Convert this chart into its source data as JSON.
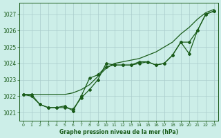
{
  "title": "Graphe pression niveau de la mer (hPa)",
  "bg_color": "#cceee8",
  "grid_color": "#aacccc",
  "line_color": "#1a5c1a",
  "xlim": [
    -0.5,
    23.5
  ],
  "ylim": [
    1020.5,
    1027.7
  ],
  "yticks": [
    1021,
    1022,
    1023,
    1024,
    1025,
    1026,
    1027
  ],
  "xticks": [
    0,
    1,
    2,
    3,
    4,
    5,
    6,
    7,
    8,
    9,
    10,
    11,
    12,
    13,
    14,
    15,
    16,
    17,
    18,
    19,
    20,
    21,
    22,
    23
  ],
  "series_smooth": {
    "x": [
      0,
      1,
      2,
      3,
      4,
      5,
      6,
      7,
      8,
      9,
      10,
      11,
      12,
      13,
      14,
      15,
      16,
      17,
      18,
      19,
      20,
      21,
      22,
      23
    ],
    "y": [
      1022.1,
      1022.1,
      1022.1,
      1022.1,
      1022.1,
      1022.1,
      1022.2,
      1022.4,
      1022.7,
      1023.2,
      1023.7,
      1024.0,
      1024.1,
      1024.2,
      1024.3,
      1024.5,
      1024.7,
      1025.0,
      1025.3,
      1025.8,
      1026.2,
      1026.7,
      1027.1,
      1027.3
    ]
  },
  "series_dotted": {
    "x": [
      0,
      1,
      2,
      3,
      4,
      5,
      6,
      7,
      8,
      9,
      10,
      11,
      12,
      13,
      14,
      15,
      16,
      17,
      18,
      19,
      20,
      21,
      22,
      23
    ],
    "y": [
      1022.1,
      1022.0,
      1021.5,
      1021.3,
      1021.3,
      1021.3,
      1021.2,
      1021.9,
      1022.4,
      1023.0,
      1024.0,
      1023.9,
      1023.9,
      1023.9,
      1024.0,
      1024.1,
      1023.9,
      1024.0,
      1024.5,
      1025.3,
      1024.6,
      1026.0,
      1027.0,
      1027.2
    ]
  },
  "series_mid": {
    "x": [
      0,
      1,
      2,
      3,
      4,
      5,
      6,
      7,
      8,
      9,
      10,
      11,
      12,
      13,
      14,
      15,
      16,
      17,
      18,
      19,
      20,
      21,
      22,
      23
    ],
    "y": [
      1022.1,
      1022.1,
      1021.5,
      1021.3,
      1021.3,
      1021.4,
      1021.1,
      1022.0,
      1023.1,
      1023.3,
      1023.8,
      1023.9,
      1023.9,
      1023.9,
      1024.1,
      1024.1,
      1023.9,
      1024.0,
      1024.5,
      1025.3,
      1025.3,
      1026.0,
      1027.0,
      1027.2
    ]
  }
}
